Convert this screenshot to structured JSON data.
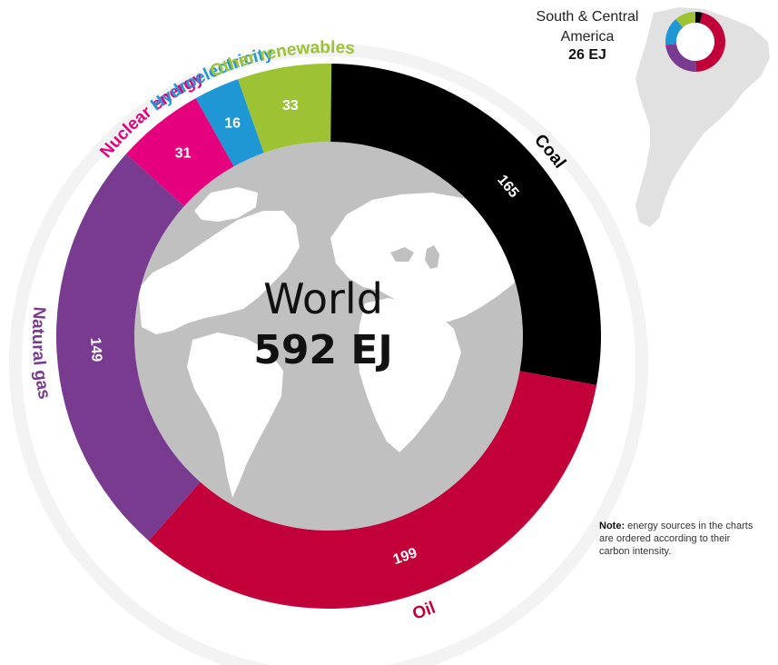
{
  "world": {
    "title": "World",
    "value_label": "592 EJ"
  },
  "inset": {
    "region_line1": "South & Central",
    "region_line2": "America",
    "value_label": "26 EJ"
  },
  "note": {
    "label": "Note:",
    "text": "energy sources in the charts are ordered according to their carbon intensity."
  },
  "chart_data": [
    {
      "type": "donut",
      "title": "World",
      "total": 592,
      "unit": "EJ",
      "segments": [
        {
          "name": "Coal",
          "value": 165,
          "color": "#000000"
        },
        {
          "name": "Oil",
          "value": 199,
          "color": "#c2003a"
        },
        {
          "name": "Natural gas",
          "value": 149,
          "color": "#783b8f"
        },
        {
          "name": "Nuclear energy",
          "value": 31,
          "color": "#e5007e"
        },
        {
          "name": "Hydroelectricity",
          "value": 16,
          "color": "#1f97d5"
        },
        {
          "name": "Other renewables",
          "value": 33,
          "color": "#9dc334"
        }
      ]
    },
    {
      "type": "donut",
      "title": "South & Central America",
      "total": 26,
      "unit": "EJ",
      "segments": [
        {
          "name": "Coal",
          "value": 1,
          "color": "#000000"
        },
        {
          "name": "Oil",
          "value": 12,
          "color": "#c2003a"
        },
        {
          "name": "Natural gas",
          "value": 6,
          "color": "#783b8f"
        },
        {
          "name": "Nuclear energy",
          "value": 0.2,
          "color": "#e5007e"
        },
        {
          "name": "Hydroelectricity",
          "value": 4,
          "color": "#1f97d5"
        },
        {
          "name": "Other renewables",
          "value": 3,
          "color": "#9dc334"
        }
      ]
    }
  ]
}
